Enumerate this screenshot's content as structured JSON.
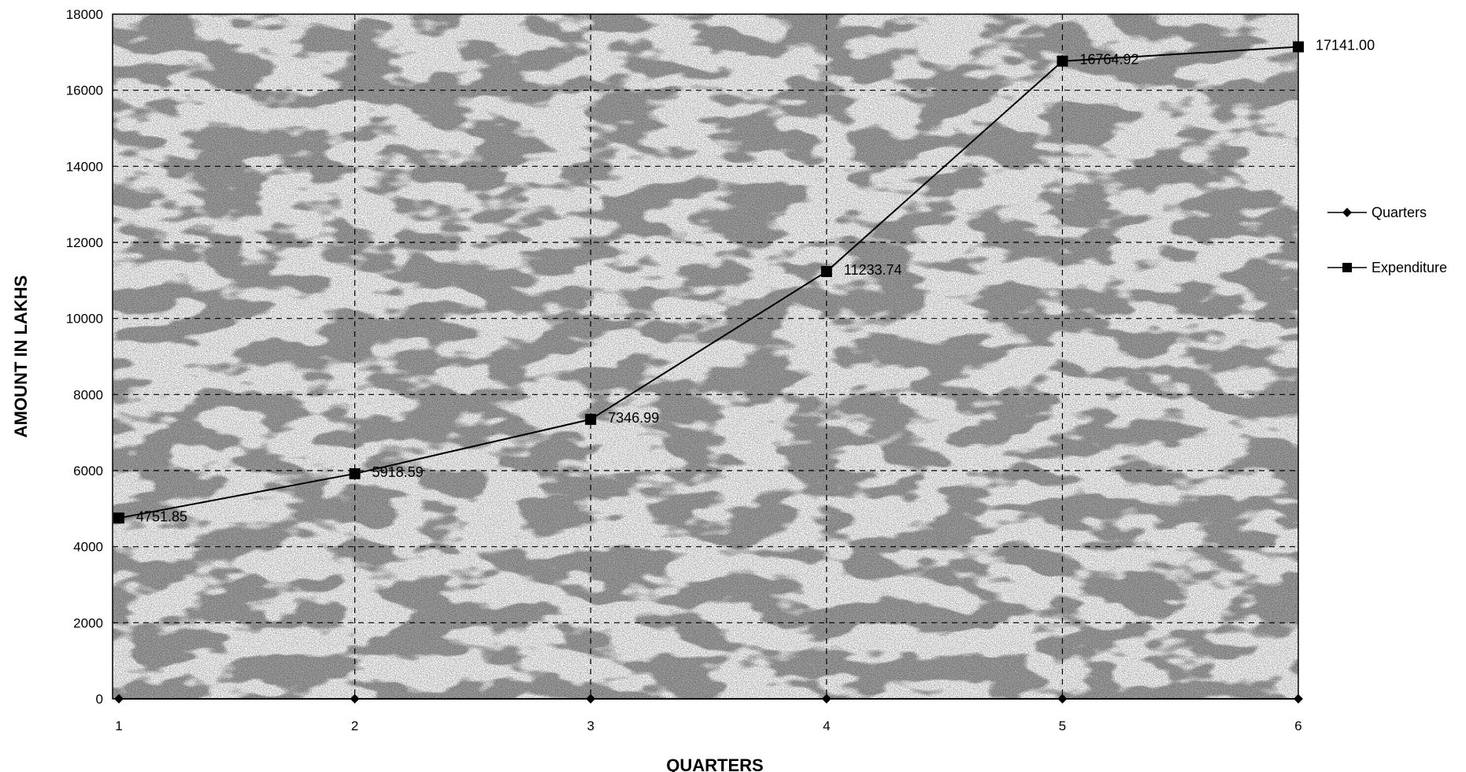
{
  "chart_data": {
    "type": "line",
    "title": "",
    "xlabel": "QUARTERS",
    "ylabel": "AMOUNT IN LAKHS",
    "x": [
      1,
      2,
      3,
      4,
      5,
      6
    ],
    "x_tick_labels": [
      "1",
      "2",
      "3",
      "4",
      "5",
      "6"
    ],
    "ylim": [
      0,
      18000
    ],
    "y_ticks": [
      0,
      2000,
      4000,
      6000,
      8000,
      10000,
      12000,
      14000,
      16000,
      18000
    ],
    "y_tick_labels": [
      "0",
      "2000",
      "4000",
      "6000",
      "8000",
      "10000",
      "12000",
      "14000",
      "16000",
      "18000"
    ],
    "grid": "dashed",
    "legend_position": "right",
    "series": [
      {
        "name": "Quarters",
        "marker": "diamond",
        "values": [
          0,
          0,
          0,
          0,
          0,
          0
        ],
        "labels": [
          "",
          "",
          "",
          "",
          "",
          ""
        ]
      },
      {
        "name": "Expenditure",
        "marker": "square",
        "values": [
          4751.85,
          5918.59,
          7346.99,
          11233.74,
          16764.92,
          17141.0
        ],
        "labels": [
          "4751.85",
          "5918.59",
          "7346.99",
          "11233.74",
          "16764.92",
          "17141.00"
        ]
      }
    ],
    "colors": {
      "line": "#000000",
      "grid": "#000000"
    }
  }
}
